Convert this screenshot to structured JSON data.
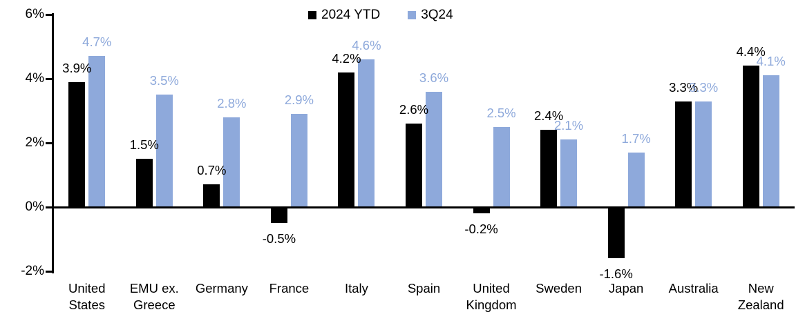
{
  "chart_data": {
    "type": "bar",
    "title": "",
    "xlabel": "",
    "ylabel": "",
    "categories": [
      "United States",
      "EMU ex. Greece",
      "Germany",
      "France",
      "Italy",
      "Spain",
      "United Kingdom",
      "Sweden",
      "Japan",
      "Australia",
      "New Zealand"
    ],
    "series": [
      {
        "name": "2024 YTD",
        "color": "#000000",
        "values": [
          3.9,
          1.5,
          0.7,
          -0.5,
          4.2,
          2.6,
          -0.2,
          2.4,
          -1.6,
          3.3,
          4.4
        ],
        "labels": [
          "3.9%",
          "1.5%",
          "0.7%",
          "-0.5%",
          "4.2%",
          "2.6%",
          "-0.2%",
          "2.4%",
          "-1.6%",
          "3.3%",
          "4.4%"
        ]
      },
      {
        "name": "3Q24",
        "color": "#8EA9DB",
        "values": [
          4.7,
          3.5,
          2.8,
          2.9,
          4.6,
          3.6,
          2.5,
          2.1,
          1.7,
          3.3,
          4.1
        ],
        "labels": [
          "4.7%",
          "3.5%",
          "2.8%",
          "2.9%",
          "4.6%",
          "3.6%",
          "2.5%",
          "2.1%",
          "1.7%",
          "3.3%",
          "4.1%"
        ]
      }
    ],
    "ylim": [
      -2,
      6
    ],
    "yticks": [
      {
        "value": 6,
        "label": "6%"
      },
      {
        "value": 4,
        "label": "4%"
      },
      {
        "value": 2,
        "label": "2%"
      },
      {
        "value": 0,
        "label": "0%"
      },
      {
        "value": -2,
        "label": "-2%"
      }
    ],
    "grid": false,
    "legend_position": "top-center",
    "value_label_format": "percent_one_decimal"
  }
}
